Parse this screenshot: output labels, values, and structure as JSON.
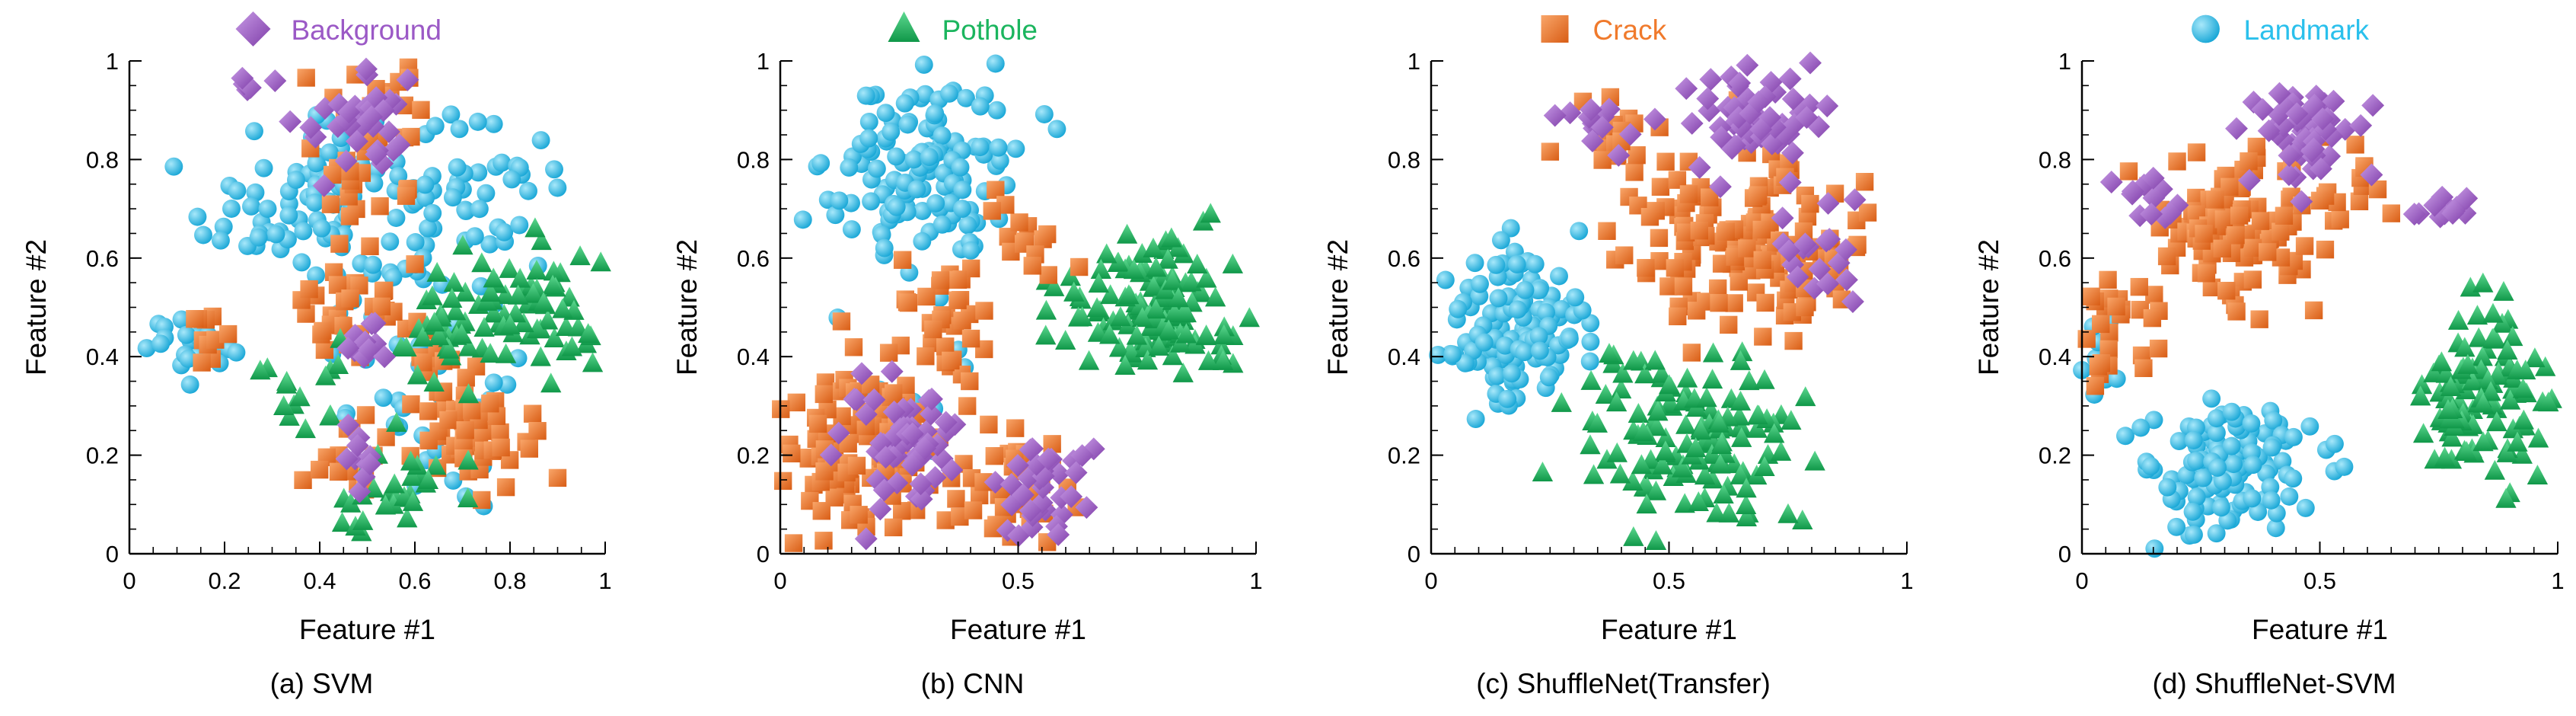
{
  "chart_data": [
    {
      "type": "scatter",
      "caption": "(a) SVM",
      "legend_label": "Background",
      "legend_marker": "diamond",
      "xlabel": "Feature #1",
      "ylabel": "Feature #2",
      "xlim": [
        0,
        1
      ],
      "ylim": [
        0,
        1
      ],
      "x_ticks": [
        "0",
        "0.2",
        "0.4",
        "0.6",
        "0.8",
        "1"
      ],
      "y_ticks": [
        "0",
        "0.2",
        "0.4",
        "0.6",
        "0.8",
        "1"
      ],
      "clusters": [
        {
          "class": "Landmark",
          "cx": 0.42,
          "cy": 0.72,
          "sx": 0.13,
          "sy": 0.11,
          "n": 110
        },
        {
          "class": "Landmark",
          "cx": 0.72,
          "cy": 0.72,
          "sx": 0.1,
          "sy": 0.07,
          "n": 40
        },
        {
          "class": "Landmark",
          "cx": 0.12,
          "cy": 0.42,
          "sx": 0.05,
          "sy": 0.03,
          "n": 22
        },
        {
          "class": "Landmark",
          "cx": 0.7,
          "cy": 0.28,
          "sx": 0.12,
          "sy": 0.08,
          "n": 30
        },
        {
          "class": "Crack",
          "cx": 0.5,
          "cy": 0.83,
          "sx": 0.07,
          "sy": 0.09,
          "n": 40
        },
        {
          "class": "Crack",
          "cx": 0.48,
          "cy": 0.48,
          "sx": 0.07,
          "sy": 0.05,
          "n": 35
        },
        {
          "class": "Crack",
          "cx": 0.72,
          "cy": 0.28,
          "sx": 0.06,
          "sy": 0.07,
          "n": 60
        },
        {
          "class": "Crack",
          "cx": 0.48,
          "cy": 0.2,
          "sx": 0.04,
          "sy": 0.04,
          "n": 15
        },
        {
          "class": "Crack",
          "cx": 0.17,
          "cy": 0.44,
          "sx": 0.02,
          "sy": 0.03,
          "n": 10
        },
        {
          "class": "Pothole",
          "cx": 0.82,
          "cy": 0.48,
          "sx": 0.1,
          "sy": 0.07,
          "n": 70
        },
        {
          "class": "Pothole",
          "cx": 0.55,
          "cy": 0.12,
          "sx": 0.06,
          "sy": 0.06,
          "n": 30
        },
        {
          "class": "Pothole",
          "cx": 0.65,
          "cy": 0.45,
          "sx": 0.06,
          "sy": 0.08,
          "n": 22
        },
        {
          "class": "Pothole",
          "cx": 0.38,
          "cy": 0.35,
          "sx": 0.05,
          "sy": 0.05,
          "n": 15
        },
        {
          "class": "Background",
          "cx": 0.48,
          "cy": 0.88,
          "sx": 0.06,
          "sy": 0.06,
          "n": 35
        },
        {
          "class": "Background",
          "cx": 0.5,
          "cy": 0.45,
          "sx": 0.03,
          "sy": 0.03,
          "n": 10
        },
        {
          "class": "Background",
          "cx": 0.48,
          "cy": 0.2,
          "sx": 0.03,
          "sy": 0.03,
          "n": 10
        },
        {
          "class": "Background",
          "cx": 0.25,
          "cy": 0.95,
          "sx": 0.015,
          "sy": 0.015,
          "n": 4
        }
      ]
    },
    {
      "type": "scatter",
      "caption": "(b) CNN",
      "legend_label": "Pothole",
      "legend_marker": "triangle",
      "xlabel": "Feature #1",
      "ylabel": "Feature #2",
      "xlim": [
        0,
        1
      ],
      "ylim": [
        0,
        1
      ],
      "x_ticks": [
        "0",
        "0.5",
        "1"
      ],
      "y_ticks": [
        "0",
        "0.2",
        "0.4",
        "0.6",
        "0.8",
        "1"
      ],
      "clusters": [
        {
          "class": "Landmark",
          "cx": 0.3,
          "cy": 0.78,
          "sx": 0.1,
          "sy": 0.1,
          "n": 140
        },
        {
          "class": "Landmark",
          "cx": 0.25,
          "cy": 0.3,
          "sx": 0.08,
          "sy": 0.08,
          "n": 10
        },
        {
          "class": "Pothole",
          "cx": 0.78,
          "cy": 0.5,
          "sx": 0.1,
          "sy": 0.07,
          "n": 140
        },
        {
          "class": "Crack",
          "cx": 0.17,
          "cy": 0.22,
          "sx": 0.09,
          "sy": 0.08,
          "n": 120
        },
        {
          "class": "Crack",
          "cx": 0.48,
          "cy": 0.15,
          "sx": 0.06,
          "sy": 0.06,
          "n": 40
        },
        {
          "class": "Crack",
          "cx": 0.33,
          "cy": 0.45,
          "sx": 0.05,
          "sy": 0.08,
          "n": 35
        },
        {
          "class": "Crack",
          "cx": 0.5,
          "cy": 0.65,
          "sx": 0.05,
          "sy": 0.05,
          "n": 15
        },
        {
          "class": "Background",
          "cx": 0.25,
          "cy": 0.22,
          "sx": 0.06,
          "sy": 0.06,
          "n": 60
        },
        {
          "class": "Background",
          "cx": 0.55,
          "cy": 0.12,
          "sx": 0.05,
          "sy": 0.05,
          "n": 35
        }
      ]
    },
    {
      "type": "scatter",
      "caption": "(c) ShuffleNet(Transfer)",
      "legend_label": "Crack",
      "legend_marker": "square",
      "xlabel": "Feature #1",
      "ylabel": "Feature #2",
      "xlim": [
        0,
        1
      ],
      "ylim": [
        0,
        1
      ],
      "x_ticks": [
        "0",
        "0.5",
        "1"
      ],
      "y_ticks": [
        "0",
        "0.2",
        "0.4",
        "0.6",
        "0.8",
        "1"
      ],
      "clusters": [
        {
          "class": "Landmark",
          "cx": 0.18,
          "cy": 0.45,
          "sx": 0.07,
          "sy": 0.08,
          "n": 150
        },
        {
          "class": "Pothole",
          "cx": 0.55,
          "cy": 0.23,
          "sx": 0.12,
          "sy": 0.09,
          "n": 140
        },
        {
          "class": "Crack",
          "cx": 0.65,
          "cy": 0.63,
          "sx": 0.12,
          "sy": 0.09,
          "n": 160
        },
        {
          "class": "Crack",
          "cx": 0.38,
          "cy": 0.85,
          "sx": 0.05,
          "sy": 0.04,
          "n": 20
        },
        {
          "class": "Background",
          "cx": 0.67,
          "cy": 0.88,
          "sx": 0.07,
          "sy": 0.05,
          "n": 60
        },
        {
          "class": "Background",
          "cx": 0.82,
          "cy": 0.6,
          "sx": 0.05,
          "sy": 0.06,
          "n": 20
        },
        {
          "class": "Background",
          "cx": 0.35,
          "cy": 0.87,
          "sx": 0.04,
          "sy": 0.03,
          "n": 12
        }
      ]
    },
    {
      "type": "scatter",
      "caption": "(d) ShuffleNet-SVM",
      "legend_label": "Landmark",
      "legend_marker": "circle",
      "xlabel": "Feature #1",
      "ylabel": "Feature #2",
      "xlim": [
        0,
        1
      ],
      "ylim": [
        0,
        1
      ],
      "x_ticks": [
        "0",
        "0.5",
        "1"
      ],
      "y_ticks": [
        "0",
        "0.2",
        "0.4",
        "0.6",
        "0.8",
        "1"
      ],
      "clusters": [
        {
          "class": "Landmark",
          "cx": 0.3,
          "cy": 0.17,
          "sx": 0.09,
          "sy": 0.07,
          "n": 130
        },
        {
          "class": "Landmark",
          "cx": 0.04,
          "cy": 0.38,
          "sx": 0.02,
          "sy": 0.04,
          "n": 10
        },
        {
          "class": "Pothole",
          "cx": 0.85,
          "cy": 0.32,
          "sx": 0.07,
          "sy": 0.09,
          "n": 120
        },
        {
          "class": "Crack",
          "cx": 0.32,
          "cy": 0.65,
          "sx": 0.09,
          "sy": 0.08,
          "n": 110
        },
        {
          "class": "Crack",
          "cx": 0.08,
          "cy": 0.45,
          "sx": 0.04,
          "sy": 0.06,
          "n": 25
        },
        {
          "class": "Crack",
          "cx": 0.55,
          "cy": 0.75,
          "sx": 0.05,
          "sy": 0.04,
          "n": 15
        },
        {
          "class": "Background",
          "cx": 0.47,
          "cy": 0.85,
          "sx": 0.06,
          "sy": 0.05,
          "n": 55
        },
        {
          "class": "Background",
          "cx": 0.12,
          "cy": 0.72,
          "sx": 0.04,
          "sy": 0.02,
          "n": 12
        },
        {
          "class": "Background",
          "cx": 0.75,
          "cy": 0.7,
          "sx": 0.03,
          "sy": 0.02,
          "n": 12
        }
      ]
    }
  ],
  "classes": {
    "Background": {
      "color": "#9B59C6",
      "label_color": "#9B59C6"
    },
    "Pothole": {
      "color": "#1BB55E",
      "label_color": "#1BB55E"
    },
    "Crack": {
      "color": "#F07A2C",
      "label_color": "#F07A2C"
    },
    "Landmark": {
      "color": "#2AC0EC",
      "label_color": "#2AC0EC"
    }
  }
}
